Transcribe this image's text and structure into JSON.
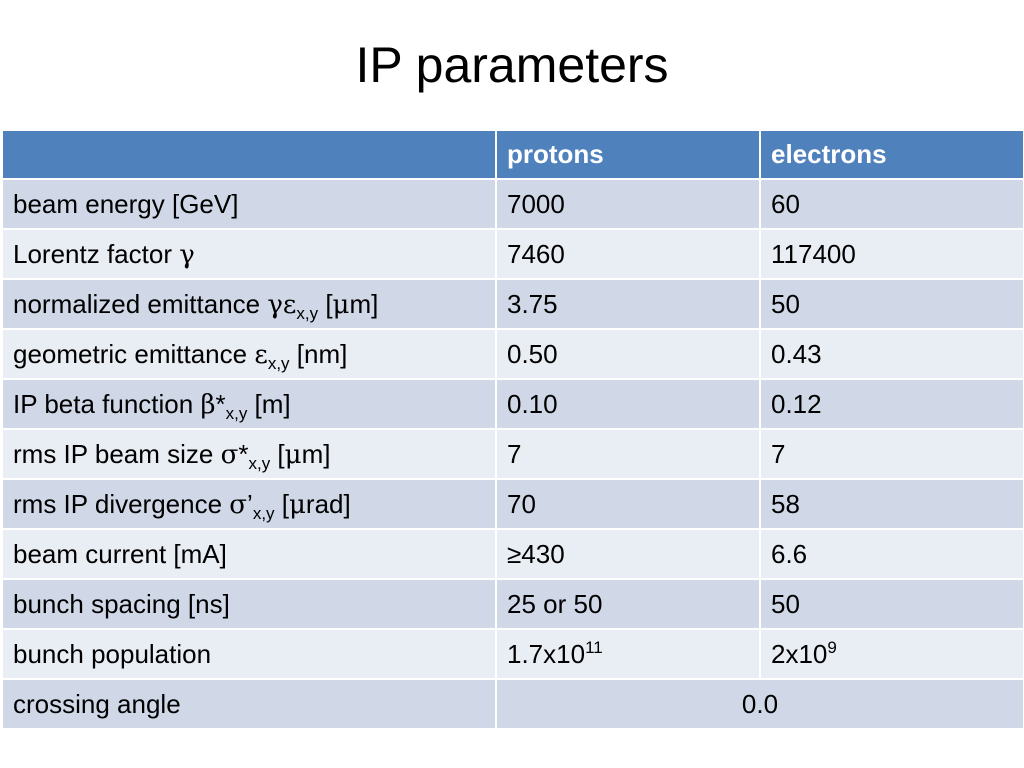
{
  "title": "IP parameters",
  "table": {
    "headers": [
      "",
      "protons",
      "electrons"
    ],
    "rows": [
      {
        "label": "beam energy [GeV]",
        "protons": "7000",
        "electrons": "60"
      },
      {
        "label_parts": {
          "text": "Lorentz factor ",
          "symbol": "γ"
        },
        "protons": "7460",
        "electrons": "117400"
      },
      {
        "label_parts": {
          "text": "normalized emittance ",
          "symbol": "γε",
          "sub": "x,y",
          "unit_open": " [",
          "unit_symbol": "μ",
          "unit_close": "m]"
        },
        "protons": "3.75",
        "electrons": "50"
      },
      {
        "label_parts": {
          "text": "geometric emittance ",
          "symbol": "ε",
          "sub": "x,y",
          "unit": " [nm]"
        },
        "protons": "0.50",
        "electrons": "0.43"
      },
      {
        "label_parts": {
          "text": "IP beta function ",
          "symbol": "β",
          "star": "*",
          "sub": "x,y",
          "unit": " [m]"
        },
        "protons": "0.10",
        "electrons": "0.12"
      },
      {
        "label_parts": {
          "text": "rms IP beam size ",
          "symbol": "σ",
          "star": "*",
          "sub": "x,y",
          "unit_open": " [",
          "unit_symbol": "μ",
          "unit_close": "m]"
        },
        "protons": "7",
        "electrons": "7"
      },
      {
        "label_parts": {
          "text": "rms IP divergence ",
          "symbol": "σ",
          "star": "’",
          "sub": "x,y",
          "unit_open": " [",
          "unit_symbol": "μ",
          "unit_close": "rad]"
        },
        "protons": "70",
        "electrons": "58"
      },
      {
        "label": "beam current [mA]",
        "protons": "≥430",
        "electrons": "6.6"
      },
      {
        "label": "bunch spacing [ns]",
        "protons": "25 or 50",
        "electrons": "50"
      },
      {
        "label": "bunch population",
        "protons_parts": {
          "base": "1.7x10",
          "exp": "11"
        },
        "electrons_parts": {
          "base": "2x10",
          "exp": "9"
        }
      },
      {
        "label": "crossing angle",
        "merged_value": "0.0"
      }
    ]
  },
  "colors": {
    "header_bg": "#4f81bd",
    "row_odd": "#d0d8e8",
    "row_even": "#e9edf4"
  }
}
